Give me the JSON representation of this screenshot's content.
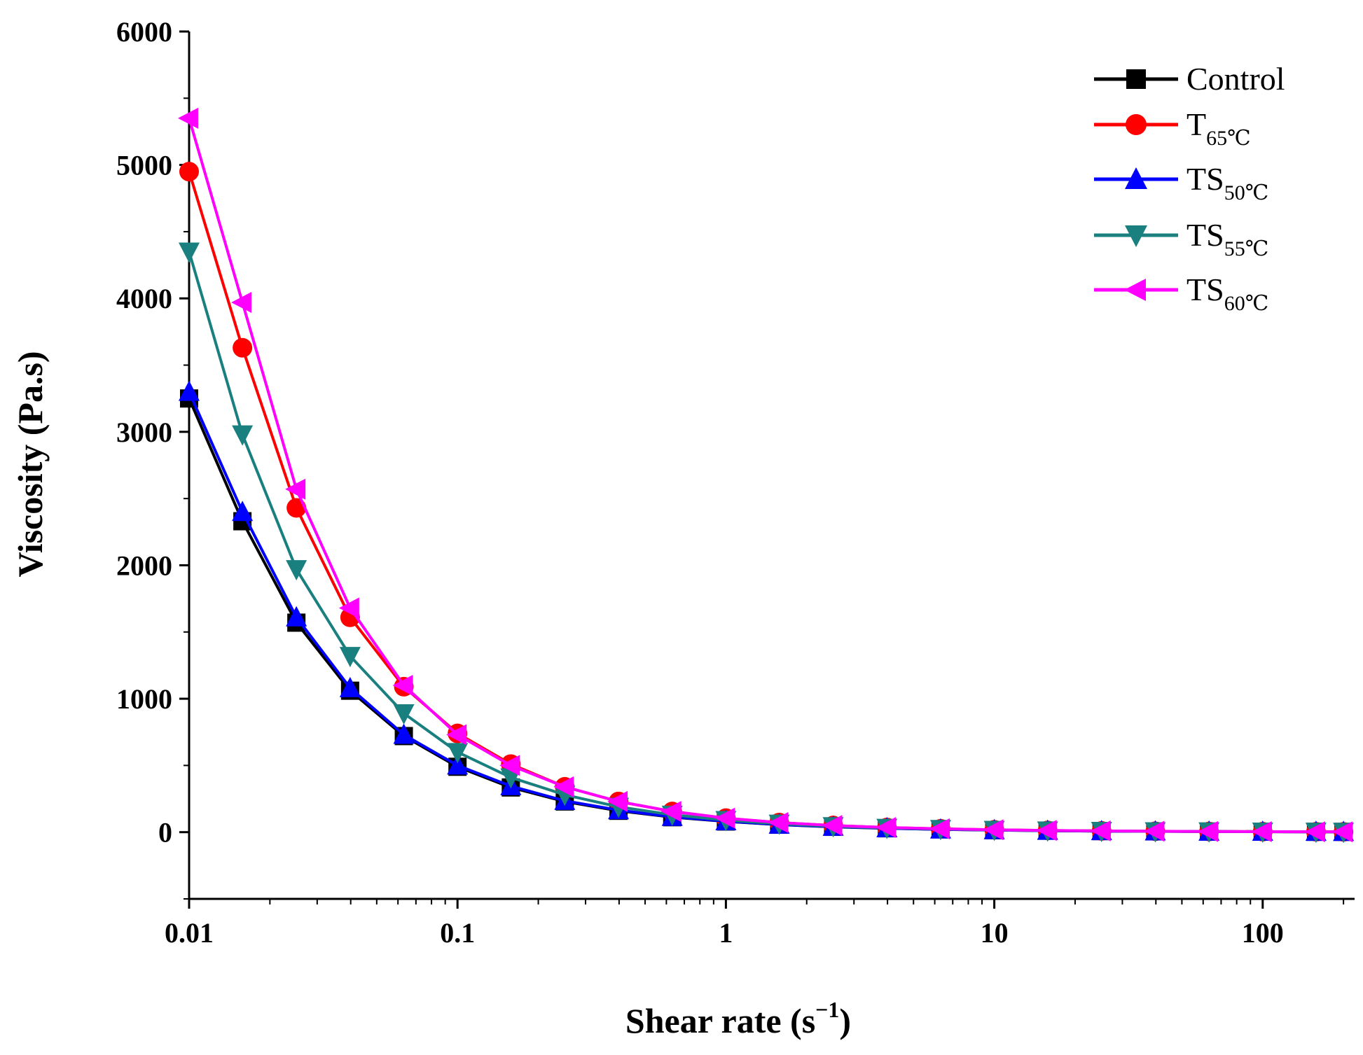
{
  "chart_data": {
    "type": "line",
    "xlabel": "Shear rate (s",
    "xlabel_superscript": "−1",
    "xlabel_close": ")",
    "ylabel": "Viscosity (Pa.s)",
    "x_scale": "log",
    "xlim": [
      0.01,
      220
    ],
    "ylim": [
      -500,
      6000
    ],
    "x_ticks": [
      "0.01",
      "0.1",
      "1",
      "10",
      "100"
    ],
    "x_tick_values": [
      0.01,
      0.1,
      1,
      10,
      100
    ],
    "y_ticks": [
      "0",
      "1000",
      "2000",
      "3000",
      "4000",
      "5000",
      "6000"
    ],
    "y_tick_values": [
      0,
      1000,
      2000,
      3000,
      4000,
      5000,
      6000
    ],
    "grid": false,
    "legend_position": "top-right",
    "x": [
      0.01,
      0.0158,
      0.0251,
      0.0398,
      0.0631,
      0.1,
      0.158,
      0.251,
      0.398,
      0.631,
      1,
      1.58,
      2.51,
      3.98,
      6.31,
      10,
      15.8,
      25.1,
      39.8,
      63.1,
      100,
      158,
      200
    ],
    "series": [
      {
        "name": "Control",
        "name_sub": "",
        "marker": "square",
        "color": "#000000",
        "values": [
          3250,
          2330,
          1570,
          1060,
          720,
          490,
          335,
          230,
          160,
          112,
          80,
          56,
          40,
          29,
          21,
          15,
          11,
          8,
          6,
          4.5,
          3.5,
          2.7,
          2.3
        ]
      },
      {
        "name": "T",
        "name_sub": "65℃",
        "marker": "circle",
        "color": "#ff0000",
        "values": [
          4950,
          3630,
          2430,
          1610,
          1090,
          740,
          510,
          340,
          230,
          155,
          105,
          72,
          50,
          35,
          25,
          18,
          13,
          9.5,
          7,
          5,
          3.8,
          3,
          2.6
        ]
      },
      {
        "name": "TS",
        "name_sub": "50℃",
        "marker": "triangle-up",
        "color": "#0000ff",
        "values": [
          3300,
          2400,
          1610,
          1080,
          730,
          500,
          345,
          235,
          165,
          115,
          82,
          57,
          41,
          30,
          21,
          15.5,
          11,
          8,
          6,
          4.5,
          3.5,
          2.7,
          2.3
        ]
      },
      {
        "name": "TS",
        "name_sub": "55℃",
        "marker": "triangle-down",
        "color": "#1a7f7f",
        "values": [
          4350,
          2980,
          1970,
          1320,
          890,
          600,
          410,
          280,
          190,
          130,
          90,
          63,
          44,
          32,
          23,
          16.5,
          12,
          9,
          6.5,
          4.8,
          3.7,
          2.8,
          2.4
        ]
      },
      {
        "name": "TS",
        "name_sub": "60℃",
        "marker": "triangle-left",
        "color": "#ff00ff",
        "values": [
          5350,
          3970,
          2570,
          1680,
          1100,
          730,
          500,
          340,
          230,
          155,
          105,
          72,
          50,
          35,
          25,
          18,
          13,
          9.5,
          7,
          5,
          3.8,
          3,
          2.6
        ]
      }
    ]
  }
}
